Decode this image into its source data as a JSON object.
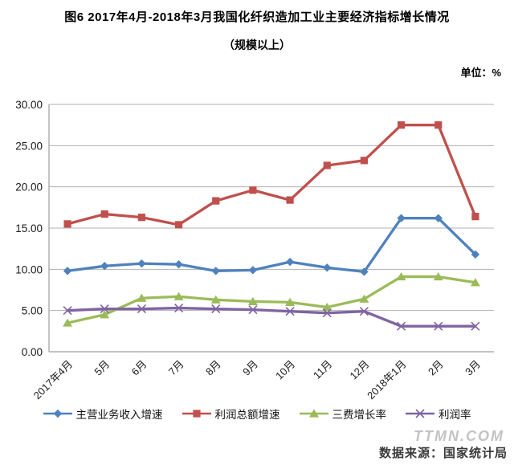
{
  "header": {
    "title": "图6  2017年4月-2018年3月我国化纤织造加工业主要经济指标增长情况",
    "subtitle": "（规模以上）",
    "unit_label": "单位：%"
  },
  "footer": {
    "watermark": "TTMN.COM",
    "source": "数据来源：国家统计局"
  },
  "chart_data": {
    "type": "line",
    "title": "2017年4月-2018年3月我国化纤织造加工业主要经济指标增长情况（规模以上）",
    "xlabel": "",
    "ylabel": "单位：%",
    "categories": [
      "2017年4月",
      "5月",
      "6月",
      "7月",
      "8月",
      "9月",
      "10月",
      "11月",
      "12月",
      "2018年1月",
      "2月",
      "3月"
    ],
    "series": [
      {
        "name": "主营业务收入增速",
        "marker": "diamond",
        "color": "#4F81BD",
        "values": [
          9.8,
          10.4,
          10.7,
          10.6,
          9.8,
          9.9,
          10.9,
          10.2,
          9.7,
          16.2,
          16.2,
          11.8
        ]
      },
      {
        "name": "利润总额增速",
        "marker": "square",
        "color": "#C0504D",
        "values": [
          15.5,
          16.7,
          16.3,
          15.4,
          18.3,
          19.6,
          18.4,
          22.6,
          23.2,
          27.5,
          27.5,
          16.4
        ]
      },
      {
        "name": "三费增长率",
        "marker": "triangle",
        "color": "#9BBB59",
        "values": [
          3.5,
          4.5,
          6.5,
          6.7,
          6.3,
          6.1,
          6.0,
          5.4,
          6.4,
          9.1,
          9.1,
          8.4
        ]
      },
      {
        "name": "利润率",
        "marker": "x",
        "color": "#8064A2",
        "values": [
          5.0,
          5.2,
          5.2,
          5.3,
          5.2,
          5.1,
          4.9,
          4.7,
          4.9,
          3.1,
          3.1,
          3.1
        ]
      }
    ],
    "ylim": [
      0,
      30
    ],
    "ytick_step": 5,
    "ytick_format": "0.00",
    "grid": true,
    "grid_color": "#b0b0b0",
    "legend_position": "bottom"
  }
}
